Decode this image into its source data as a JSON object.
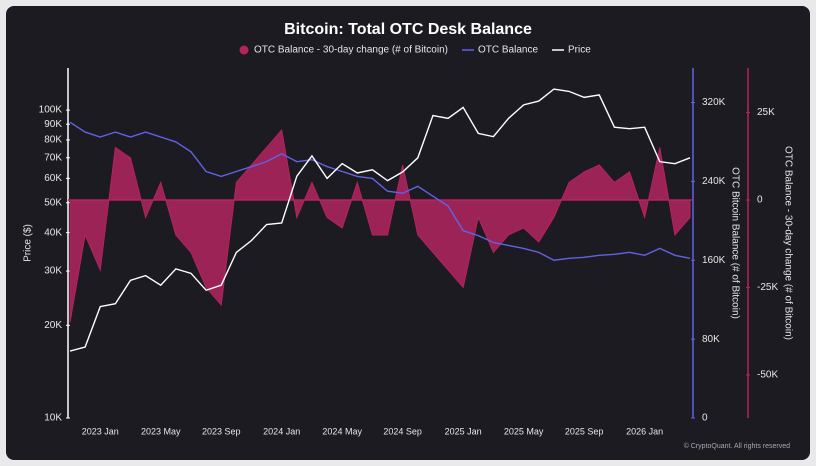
{
  "chart_data": {
    "type": "line",
    "title": "Bitcoin: Total OTC Desk Balance",
    "footer": "© CryptoQuant. All rights reserved",
    "y_label": "Price ($)",
    "y2_label": "OTC Bitcoin Balance (# of Bitcoin)",
    "y3_label": "OTC Balance - 30-day change (# of Bitcoin)",
    "categories": [
      null,
      null,
      "2023 Jan",
      null,
      null,
      null,
      "2023 May",
      null,
      null,
      null,
      "2023 Sep",
      null,
      null,
      null,
      "2024 Jan",
      null,
      null,
      null,
      "2024 May",
      null,
      null,
      null,
      "2024 Sep",
      null,
      null,
      null,
      "2025 Jan",
      null,
      null,
      null,
      "2025 May",
      null,
      null,
      null,
      "2025 Sep",
      null,
      null,
      null,
      "2026 Jan",
      null,
      null,
      null
    ],
    "log_y": true,
    "grid": false,
    "ylim": [
      10000,
      137000
    ],
    "yticks": [
      {
        "value": 10000,
        "label": "10K"
      },
      {
        "value": 20000,
        "label": "20K"
      },
      {
        "value": 30000,
        "label": "30K"
      },
      {
        "value": 40000,
        "label": "40K"
      },
      {
        "value": 50000,
        "label": "50K"
      },
      {
        "value": 60000,
        "label": "60K"
      },
      {
        "value": 70000,
        "label": "70K"
      },
      {
        "value": 80000,
        "label": "80K"
      },
      {
        "value": 90000,
        "label": "90K"
      },
      {
        "value": 100000,
        "label": "100K"
      }
    ],
    "y2lim": [
      0,
      355000
    ],
    "y2ticks": [
      0,
      {
        "value": 80000,
        "label": "80K"
      },
      {
        "value": 160000,
        "label": "160K"
      },
      {
        "value": 240000,
        "label": "240K"
      },
      {
        "value": 320000,
        "label": "320K"
      }
    ],
    "y3lim": [
      -62300,
      37700
    ],
    "y3ticks": [
      {
        "value": -50000,
        "label": "-50K"
      },
      {
        "value": -25000,
        "label": "-25K"
      },
      0,
      {
        "value": 25000,
        "label": "25K"
      }
    ],
    "series": [
      {
        "name": "OTC Balance - 30-day change (# of Bitcoin)",
        "type": "area",
        "axis": "y3",
        "color": "#b3245f",
        "values": [
          -35000,
          -10000,
          -20000,
          15000,
          12000,
          -5000,
          5000,
          -10000,
          -15000,
          -25000,
          -30000,
          5000,
          10000,
          15000,
          20000,
          -5000,
          5000,
          -5000,
          -8000,
          5000,
          -10000,
          -10000,
          10000,
          -10000,
          -15000,
          -20000,
          -25000,
          -5000,
          -15000,
          -10000,
          -8000,
          -12000,
          -5000,
          5000,
          8000,
          10000,
          5000,
          8000,
          -5000,
          15000,
          -10000,
          -5000
        ]
      },
      {
        "name": "OTC Balance",
        "type": "line",
        "axis": "y2",
        "color": "#6262e6",
        "values": [
          300000,
          290000,
          285000,
          290000,
          285000,
          290000,
          285000,
          280000,
          270000,
          250000,
          245000,
          250000,
          255000,
          260000,
          268000,
          260000,
          262000,
          255000,
          250000,
          245000,
          243000,
          230000,
          228000,
          235000,
          225000,
          215000,
          190000,
          185000,
          178000,
          175000,
          172000,
          168000,
          160000,
          162000,
          163000,
          165000,
          166000,
          168000,
          165000,
          172000,
          165000,
          162000
        ]
      },
      {
        "name": "Price",
        "type": "line",
        "axis": "y",
        "color": "#ffffff",
        "values": [
          16500,
          17000,
          23000,
          23500,
          28000,
          29000,
          27000,
          30500,
          29500,
          26000,
          27000,
          34500,
          37700,
          42500,
          43000,
          61000,
          71000,
          60000,
          67000,
          62500,
          64000,
          59000,
          63000,
          70000,
          96000,
          94000,
          102000,
          84000,
          82000,
          94000,
          104000,
          107000,
          117000,
          115000,
          110000,
          112000,
          88000,
          87000,
          88000,
          68000,
          67000,
          70000
        ]
      }
    ]
  }
}
